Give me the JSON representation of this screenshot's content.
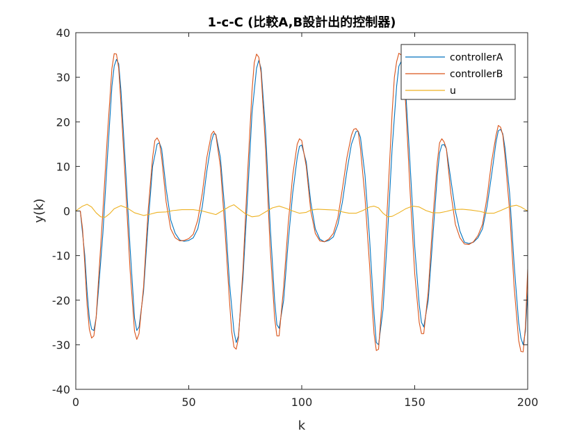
{
  "chart_data": {
    "type": "line",
    "title": "1-c-C (比較A,B設計出的控制器)",
    "xlabel": "k",
    "ylabel": "y(k)",
    "xlim": [
      0,
      200
    ],
    "ylim": [
      -40,
      40
    ],
    "xticks": [
      0,
      50,
      100,
      150,
      200
    ],
    "yticks": [
      -40,
      -30,
      -20,
      -10,
      0,
      10,
      20,
      30,
      40
    ],
    "xtick_labels": [
      "0",
      "50",
      "100",
      "150",
      "200"
    ],
    "ytick_labels": [
      "-40",
      "-30",
      "-20",
      "-10",
      "0",
      "10",
      "20",
      "30",
      "40"
    ],
    "grid": false,
    "box": true,
    "legend_position": "top-right",
    "series": [
      {
        "name": "controllerA",
        "color": "#0072BD",
        "points": [
          [
            0,
            0
          ],
          [
            2,
            0
          ],
          [
            4,
            -10
          ],
          [
            5,
            -18
          ],
          [
            6,
            -24
          ],
          [
            7,
            -26.5
          ],
          [
            8,
            -26.8
          ],
          [
            9,
            -24
          ],
          [
            10,
            -18
          ],
          [
            12,
            -5
          ],
          [
            14,
            12
          ],
          [
            16,
            28
          ],
          [
            17,
            32.5
          ],
          [
            18,
            34
          ],
          [
            19,
            33
          ],
          [
            20,
            27
          ],
          [
            22,
            10
          ],
          [
            24,
            -8
          ],
          [
            26,
            -24
          ],
          [
            27,
            -26.8
          ],
          [
            28,
            -26
          ],
          [
            30,
            -18
          ],
          [
            32,
            -3
          ],
          [
            34,
            10
          ],
          [
            36,
            15
          ],
          [
            37,
            15.3
          ],
          [
            38,
            14
          ],
          [
            40,
            5
          ],
          [
            42,
            -2
          ],
          [
            44,
            -5
          ],
          [
            46,
            -6.5
          ],
          [
            48,
            -6.8
          ],
          [
            50,
            -6.6
          ],
          [
            52,
            -6
          ],
          [
            54,
            -4
          ],
          [
            56,
            1
          ],
          [
            58,
            9
          ],
          [
            60,
            15.5
          ],
          [
            61,
            17.3
          ],
          [
            62,
            17.2
          ],
          [
            64,
            12
          ],
          [
            66,
            0
          ],
          [
            68,
            -16
          ],
          [
            70,
            -27
          ],
          [
            71,
            -29.5
          ],
          [
            72,
            -28
          ],
          [
            74,
            -15
          ],
          [
            76,
            3
          ],
          [
            78,
            22
          ],
          [
            80,
            32
          ],
          [
            81,
            33.8
          ],
          [
            82,
            32
          ],
          [
            84,
            18
          ],
          [
            86,
            -3
          ],
          [
            88,
            -20
          ],
          [
            89,
            -25.5
          ],
          [
            90,
            -26.3
          ],
          [
            92,
            -20
          ],
          [
            94,
            -7
          ],
          [
            96,
            4
          ],
          [
            98,
            12
          ],
          [
            99,
            14.5
          ],
          [
            100,
            14.8
          ],
          [
            102,
            11
          ],
          [
            104,
            2
          ],
          [
            106,
            -4
          ],
          [
            108,
            -6.3
          ],
          [
            110,
            -6.9
          ],
          [
            112,
            -6.6
          ],
          [
            114,
            -5.8
          ],
          [
            116,
            -3
          ],
          [
            118,
            2
          ],
          [
            120,
            9
          ],
          [
            122,
            15
          ],
          [
            124,
            17.8
          ],
          [
            125,
            17.9
          ],
          [
            126,
            16.5
          ],
          [
            128,
            8
          ],
          [
            130,
            -6
          ],
          [
            132,
            -23
          ],
          [
            133,
            -29.5
          ],
          [
            134,
            -30
          ],
          [
            136,
            -22
          ],
          [
            138,
            -5
          ],
          [
            140,
            14
          ],
          [
            142,
            28
          ],
          [
            143,
            32.5
          ],
          [
            144,
            33.5
          ],
          [
            145,
            32
          ],
          [
            146,
            27
          ],
          [
            148,
            10
          ],
          [
            150,
            -8
          ],
          [
            152,
            -21
          ],
          [
            153,
            -25
          ],
          [
            154,
            -26
          ],
          [
            156,
            -20
          ],
          [
            158,
            -6
          ],
          [
            160,
            8
          ],
          [
            161,
            13
          ],
          [
            162,
            14.8
          ],
          [
            163,
            14.9
          ],
          [
            164,
            14
          ],
          [
            166,
            7
          ],
          [
            168,
            0
          ],
          [
            170,
            -4.5
          ],
          [
            172,
            -7
          ],
          [
            174,
            -7.3
          ],
          [
            176,
            -7
          ],
          [
            178,
            -6
          ],
          [
            180,
            -4
          ],
          [
            182,
            1
          ],
          [
            184,
            8
          ],
          [
            186,
            15.5
          ],
          [
            187,
            18
          ],
          [
            188,
            18.3
          ],
          [
            189,
            17.3
          ],
          [
            190,
            14
          ],
          [
            192,
            4
          ],
          [
            194,
            -12
          ],
          [
            196,
            -25
          ],
          [
            197,
            -28.5
          ],
          [
            198,
            -30
          ],
          [
            199,
            -27
          ],
          [
            200,
            -18
          ]
        ]
      },
      {
        "name": "controllerB",
        "color": "#D95319",
        "points": [
          [
            0,
            0
          ],
          [
            2,
            0
          ],
          [
            3,
            -4
          ],
          [
            4,
            -12
          ],
          [
            5,
            -21
          ],
          [
            6,
            -26.5
          ],
          [
            7,
            -28.5
          ],
          [
            8,
            -28
          ],
          [
            9,
            -24
          ],
          [
            10,
            -16
          ],
          [
            12,
            0
          ],
          [
            14,
            17
          ],
          [
            16,
            32
          ],
          [
            17,
            35.3
          ],
          [
            18,
            35.2
          ],
          [
            19,
            32
          ],
          [
            20,
            24
          ],
          [
            22,
            6
          ],
          [
            24,
            -13
          ],
          [
            26,
            -27
          ],
          [
            27,
            -28.8
          ],
          [
            28,
            -27.5
          ],
          [
            30,
            -17
          ],
          [
            32,
            0
          ],
          [
            34,
            12
          ],
          [
            35,
            15.8
          ],
          [
            36,
            16.4
          ],
          [
            37,
            15.5
          ],
          [
            38,
            12
          ],
          [
            40,
            2
          ],
          [
            42,
            -4
          ],
          [
            44,
            -6
          ],
          [
            46,
            -6.7
          ],
          [
            48,
            -6.6
          ],
          [
            50,
            -6.2
          ],
          [
            52,
            -5.2
          ],
          [
            54,
            -2
          ],
          [
            56,
            4
          ],
          [
            58,
            12
          ],
          [
            60,
            17.2
          ],
          [
            61,
            17.9
          ],
          [
            62,
            17
          ],
          [
            64,
            10
          ],
          [
            66,
            -4
          ],
          [
            68,
            -20
          ],
          [
            69,
            -27
          ],
          [
            70,
            -30.5
          ],
          [
            71,
            -31
          ],
          [
            72,
            -28.5
          ],
          [
            74,
            -13
          ],
          [
            76,
            8
          ],
          [
            78,
            27
          ],
          [
            79,
            33.3
          ],
          [
            80,
            35.2
          ],
          [
            81,
            34.5
          ],
          [
            82,
            31
          ],
          [
            84,
            14
          ],
          [
            86,
            -8
          ],
          [
            88,
            -24
          ],
          [
            89,
            -28
          ],
          [
            90,
            -28
          ],
          [
            92,
            -17
          ],
          [
            94,
            -3
          ],
          [
            96,
            8
          ],
          [
            98,
            15
          ],
          [
            99,
            16.2
          ],
          [
            100,
            15.8
          ],
          [
            102,
            10
          ],
          [
            104,
            0
          ],
          [
            106,
            -5
          ],
          [
            108,
            -6.7
          ],
          [
            110,
            -6.9
          ],
          [
            112,
            -6.3
          ],
          [
            114,
            -5
          ],
          [
            116,
            -1.5
          ],
          [
            118,
            5
          ],
          [
            120,
            12
          ],
          [
            122,
            17
          ],
          [
            123,
            18.3
          ],
          [
            124,
            18.5
          ],
          [
            125,
            17.8
          ],
          [
            126,
            14
          ],
          [
            128,
            3
          ],
          [
            130,
            -12
          ],
          [
            131,
            -20
          ],
          [
            132,
            -27.5
          ],
          [
            133,
            -31.3
          ],
          [
            134,
            -31
          ],
          [
            136,
            -17
          ],
          [
            138,
            2
          ],
          [
            140,
            22
          ],
          [
            141,
            30
          ],
          [
            142,
            33.5
          ],
          [
            143,
            35.4
          ],
          [
            144,
            35
          ],
          [
            145,
            31
          ],
          [
            146,
            24
          ],
          [
            148,
            4
          ],
          [
            150,
            -14
          ],
          [
            152,
            -25
          ],
          [
            153,
            -27.5
          ],
          [
            154,
            -27.5
          ],
          [
            156,
            -18
          ],
          [
            158,
            -2
          ],
          [
            160,
            11
          ],
          [
            161,
            15.3
          ],
          [
            162,
            16.2
          ],
          [
            163,
            15.5
          ],
          [
            164,
            14
          ],
          [
            166,
            4
          ],
          [
            168,
            -3
          ],
          [
            170,
            -6
          ],
          [
            172,
            -7.4
          ],
          [
            174,
            -7.5
          ],
          [
            176,
            -6.9
          ],
          [
            178,
            -5.5
          ],
          [
            180,
            -3
          ],
          [
            182,
            3
          ],
          [
            184,
            11
          ],
          [
            186,
            17
          ],
          [
            187,
            19.2
          ],
          [
            188,
            18.8
          ],
          [
            189,
            17
          ],
          [
            190,
            12
          ],
          [
            192,
            0
          ],
          [
            194,
            -17
          ],
          [
            196,
            -29
          ],
          [
            197,
            -31.5
          ],
          [
            198,
            -31.6
          ],
          [
            199,
            -26
          ],
          [
            200,
            -13
          ]
        ]
      },
      {
        "name": "u",
        "color": "#EDB120",
        "points": [
          [
            0,
            0
          ],
          [
            1,
            0.4
          ],
          [
            3,
            1.1
          ],
          [
            5,
            1.5
          ],
          [
            7,
            0.9
          ],
          [
            9,
            -0.4
          ],
          [
            11,
            -1.3
          ],
          [
            13,
            -1.4
          ],
          [
            15,
            -0.6
          ],
          [
            17,
            0.5
          ],
          [
            20,
            1.2
          ],
          [
            23,
            0.6
          ],
          [
            26,
            -0.4
          ],
          [
            30,
            -1.0
          ],
          [
            33,
            -0.7
          ],
          [
            36,
            -0.3
          ],
          [
            40,
            -0.2
          ],
          [
            43,
            0.1
          ],
          [
            47,
            0.3
          ],
          [
            52,
            0.3
          ],
          [
            56,
            0.0
          ],
          [
            59,
            -0.4
          ],
          [
            62,
            -0.8
          ],
          [
            65,
            0.1
          ],
          [
            68,
            1.0
          ],
          [
            70,
            1.4
          ],
          [
            72,
            0.6
          ],
          [
            75,
            -0.6
          ],
          [
            78,
            -1.3
          ],
          [
            81,
            -1.1
          ],
          [
            84,
            -0.2
          ],
          [
            87,
            0.7
          ],
          [
            90,
            1.1
          ],
          [
            93,
            0.6
          ],
          [
            96,
            0.0
          ],
          [
            99,
            -0.5
          ],
          [
            102,
            -0.3
          ],
          [
            104,
            0.2
          ],
          [
            107,
            0.4
          ],
          [
            111,
            0.3
          ],
          [
            115,
            0.2
          ],
          [
            118,
            -0.2
          ],
          [
            121,
            -0.5
          ],
          [
            124,
            -0.5
          ],
          [
            127,
            0.1
          ],
          [
            130,
            0.9
          ],
          [
            132,
            1.1
          ],
          [
            134,
            0.7
          ],
          [
            136,
            -0.5
          ],
          [
            138,
            -1.3
          ],
          [
            140,
            -1.2
          ],
          [
            143,
            -0.4
          ],
          [
            146,
            0.5
          ],
          [
            149,
            1.1
          ],
          [
            152,
            0.9
          ],
          [
            155,
            0.1
          ],
          [
            158,
            -0.4
          ],
          [
            161,
            -0.4
          ],
          [
            164,
            -0.1
          ],
          [
            167,
            0.3
          ],
          [
            171,
            0.4
          ],
          [
            175,
            0.2
          ],
          [
            179,
            -0.1
          ],
          [
            182,
            -0.5
          ],
          [
            185,
            -0.5
          ],
          [
            188,
            0.1
          ],
          [
            192,
            1.0
          ],
          [
            195,
            1.3
          ],
          [
            197,
            0.9
          ],
          [
            199,
            0.3
          ],
          [
            200,
            0.0
          ]
        ]
      }
    ]
  }
}
